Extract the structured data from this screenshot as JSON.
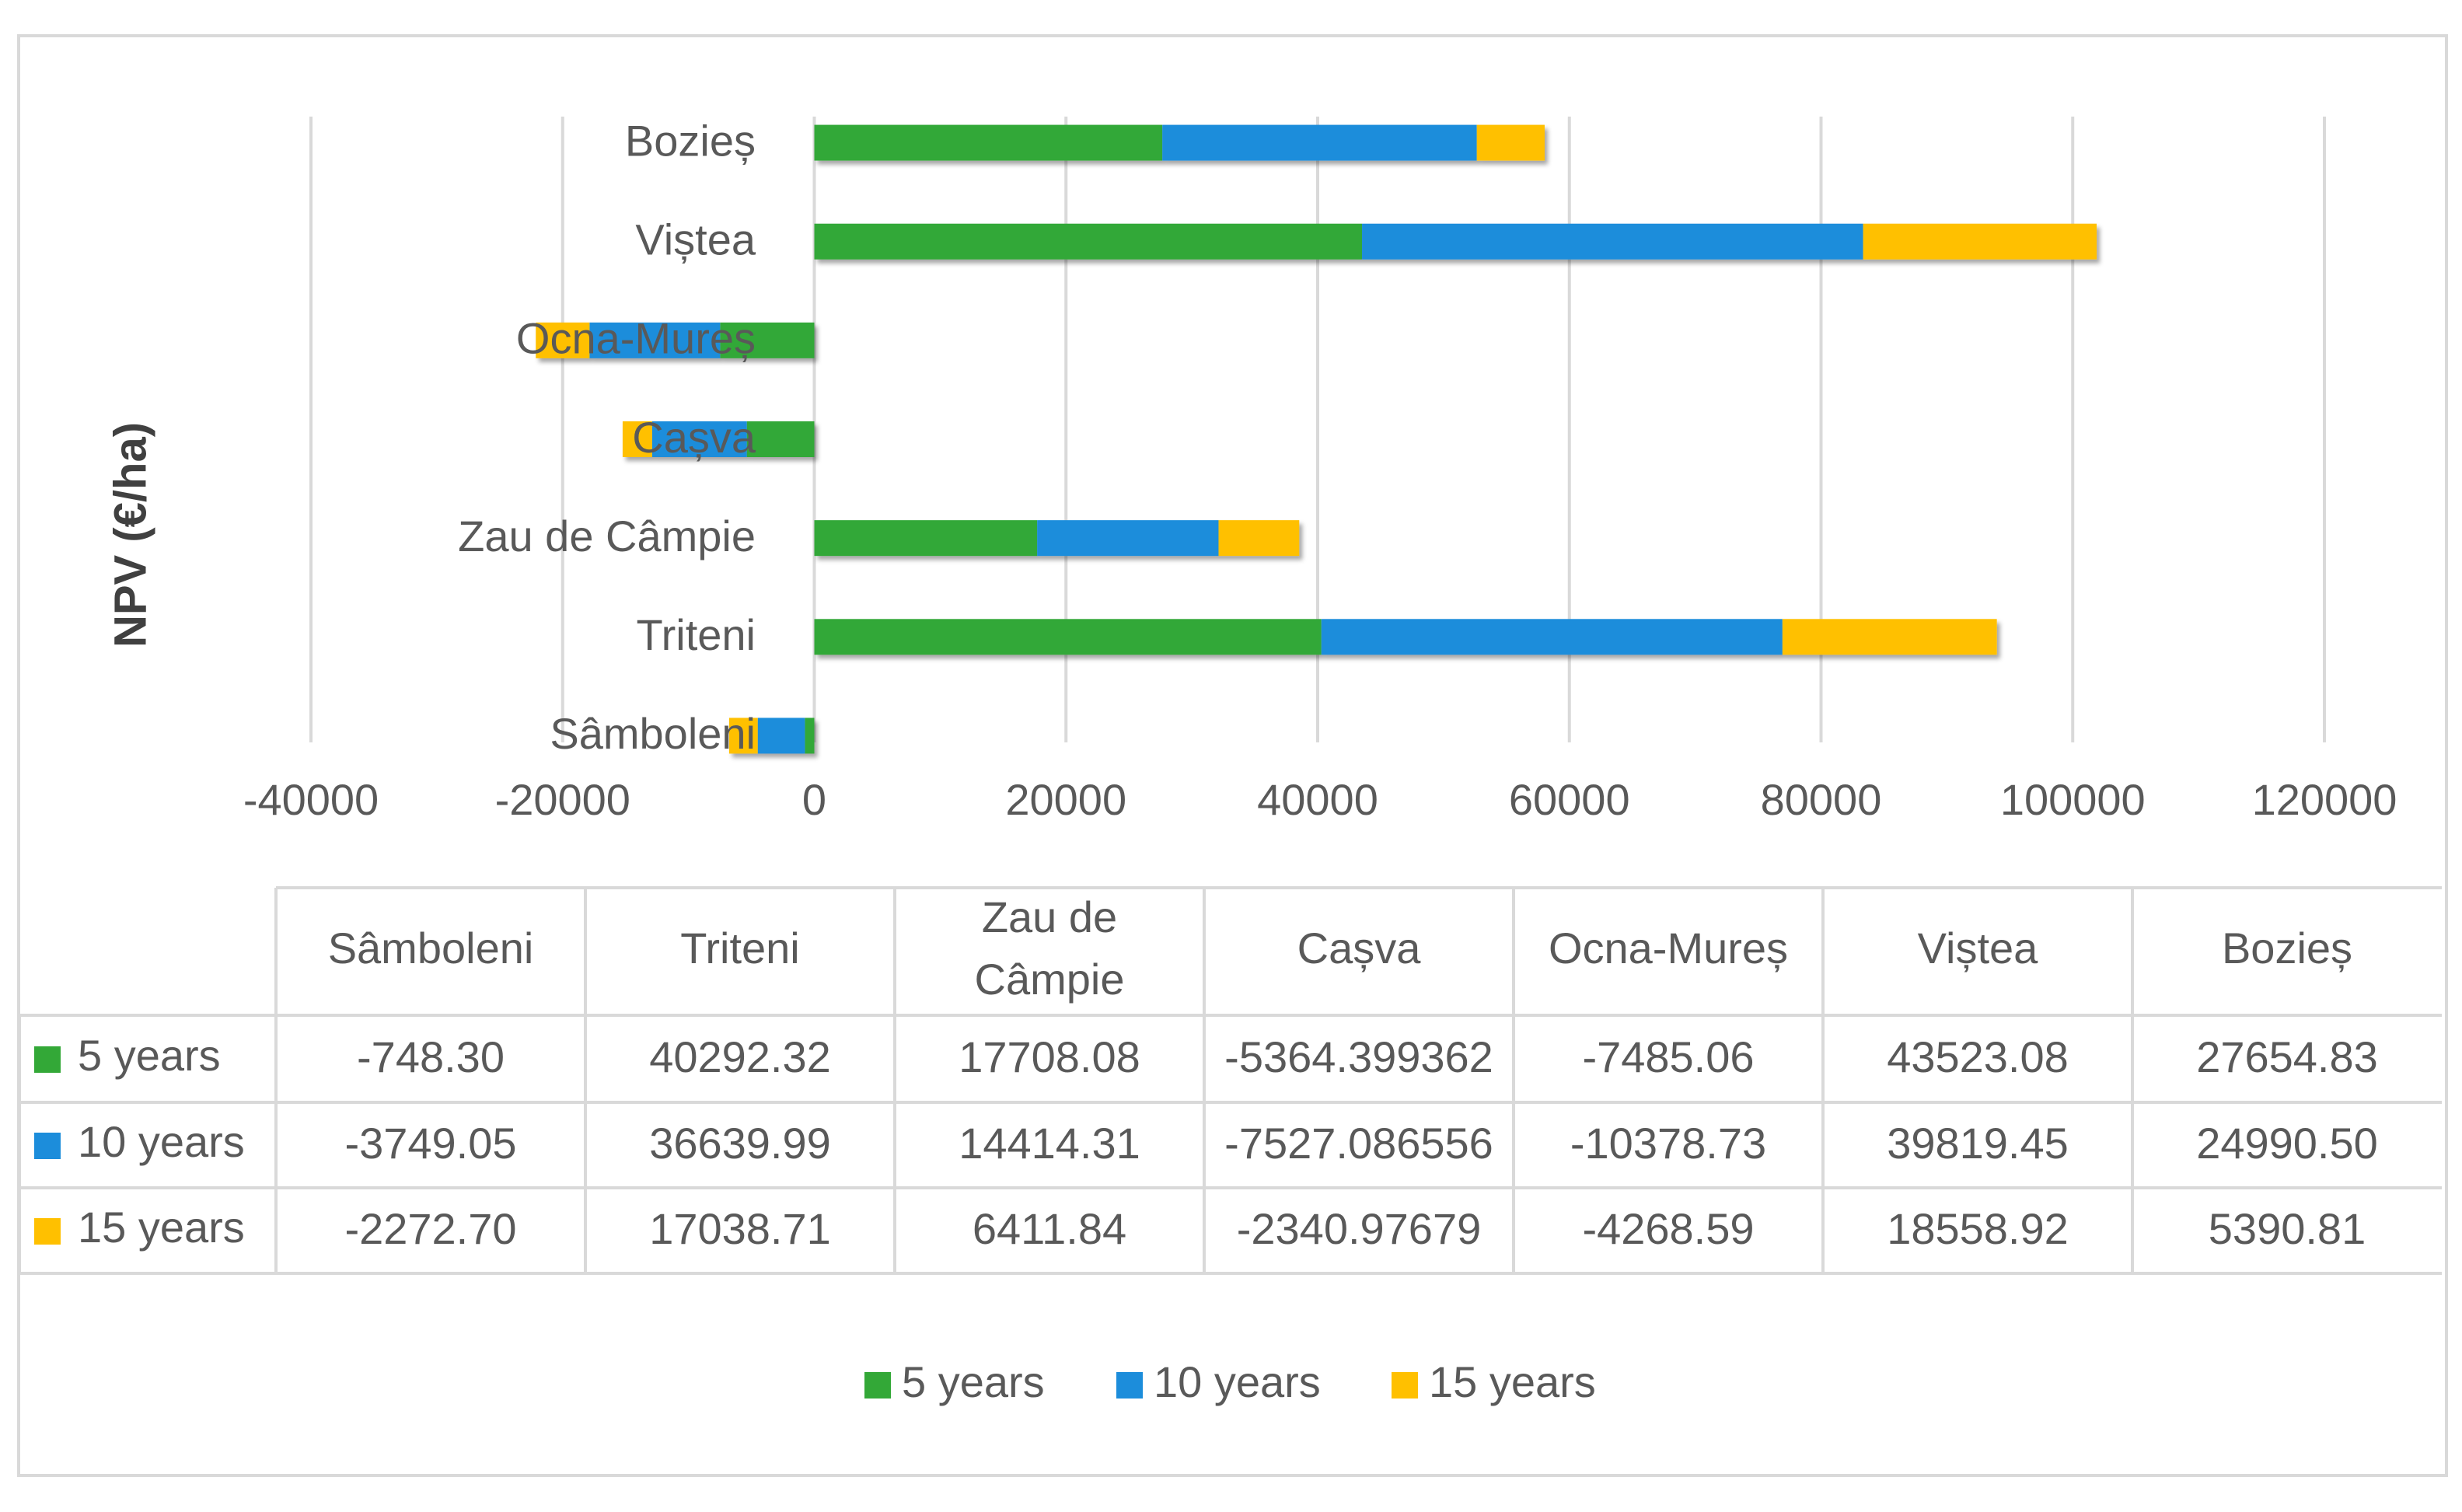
{
  "chart_data": {
    "type": "bar",
    "orientation": "horizontal",
    "stacked": true,
    "title": "",
    "ylabel": "NPV (€/ha)",
    "xlabel": "",
    "xlim": [
      -40000,
      120000
    ],
    "xticks": [
      -40000,
      -20000,
      0,
      20000,
      40000,
      60000,
      80000,
      100000,
      120000
    ],
    "xtick_labels": [
      "-40000",
      "-20000",
      "0",
      "20000",
      "40000",
      "60000",
      "80000",
      "100000",
      "120000"
    ],
    "grid": true,
    "legend_position": "bottom",
    "categories": [
      "Sâmboleni",
      "Triteni",
      "Zau de Câmpie",
      "Cașva",
      "Ocna-Mureș",
      "Viștea",
      "Bozieș"
    ],
    "table_header_labels": [
      "Sâmboleni",
      "Triteni",
      "Zau de\nCâmpie",
      "Cașva",
      "Ocna-Mureș",
      "Viștea",
      "Bozieș"
    ],
    "series": [
      {
        "name": "5 years",
        "color": "#33a837",
        "values": [
          -748.3,
          40292.32,
          17708.08,
          -5364.399362,
          -7485.06,
          43523.08,
          27654.83
        ],
        "value_labels": [
          "-748.30",
          "40292.32",
          "17708.08",
          "-5364.399362",
          "-7485.06",
          "43523.08",
          "27654.83"
        ]
      },
      {
        "name": "10 years",
        "color": "#1c8ddb",
        "values": [
          -3749.05,
          36639.99,
          14414.31,
          -7527.086556,
          -10378.73,
          39819.45,
          24990.5
        ],
        "value_labels": [
          "-3749.05",
          "36639.99",
          "14414.31",
          "-7527.086556",
          "-10378.73",
          "39819.45",
          "24990.50"
        ]
      },
      {
        "name": "15 years",
        "color": "#ffc000",
        "values": [
          -2272.7,
          17038.71,
          6411.84,
          -2340.97679,
          -4268.59,
          18558.92,
          5390.81
        ],
        "value_labels": [
          "-2272.70",
          "17038.71",
          "6411.84",
          "-2340.97679",
          "-4268.59",
          "18558.92",
          "5390.81"
        ]
      }
    ]
  }
}
